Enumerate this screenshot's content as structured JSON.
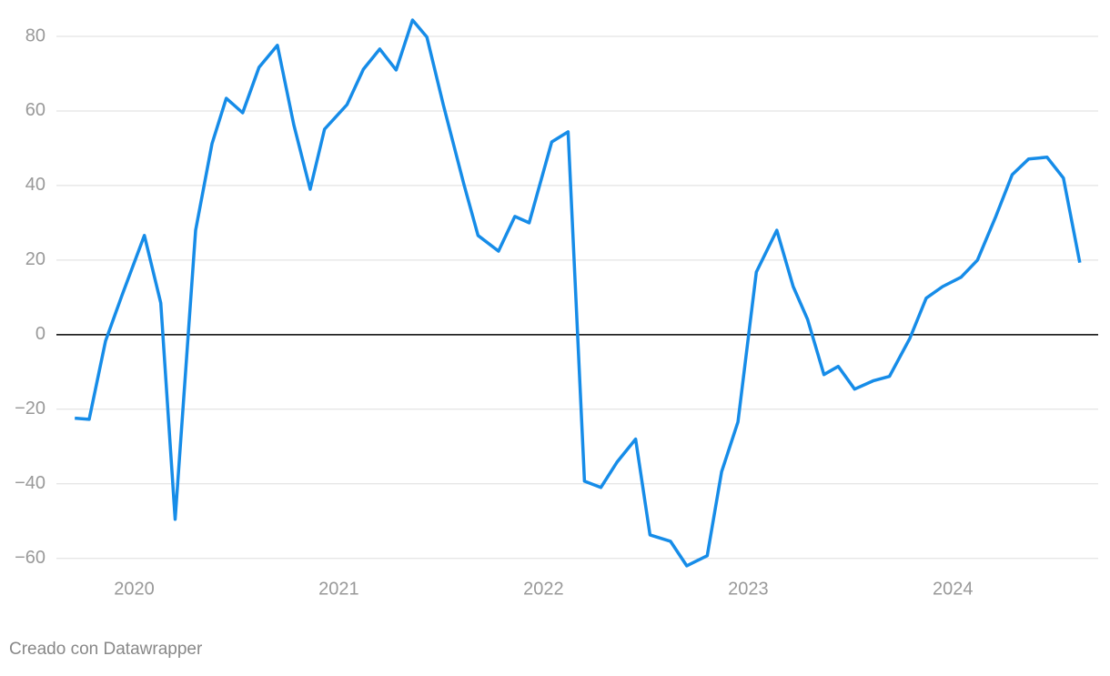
{
  "chart_data": {
    "type": "line",
    "x": [
      2019.71,
      2019.78,
      2019.86,
      2019.94,
      2020.05,
      2020.13,
      2020.2,
      2020.3,
      2020.38,
      2020.45,
      2020.53,
      2020.61,
      2020.7,
      2020.78,
      2020.86,
      2020.93,
      2021.04,
      2021.12,
      2021.2,
      2021.28,
      2021.36,
      2021.43,
      2021.51,
      2021.61,
      2021.68,
      2021.78,
      2021.86,
      2021.93,
      2022.04,
      2022.12,
      2022.2,
      2022.28,
      2022.36,
      2022.45,
      2022.52,
      2022.62,
      2022.7,
      2022.8,
      2022.87,
      2022.95,
      2023.04,
      2023.14,
      2023.22,
      2023.29,
      2023.37,
      2023.44,
      2023.52,
      2023.61,
      2023.69,
      2023.79,
      2023.87,
      2023.95,
      2024.04,
      2024.12,
      2024.21,
      2024.29,
      2024.37,
      2024.46,
      2024.54,
      2024.62
    ],
    "series": [
      {
        "color": "#168ce8",
        "values": [
          -22.4,
          -22.7,
          -1.7,
          10.5,
          26.6,
          8.5,
          -49.5,
          28,
          51.2,
          63.4,
          59.5,
          71.7,
          77.6,
          56.3,
          39,
          55.1,
          61.7,
          71.2,
          76.6,
          71,
          84.4,
          79.8,
          61.7,
          40.5,
          26.6,
          22.4,
          31.7,
          30,
          51.7,
          54.4,
          -39.3,
          -41,
          -34.1,
          -28,
          -53.7,
          -55.4,
          -62,
          -59.3,
          -36.8,
          -23.4,
          16.8,
          28,
          12.9,
          4.1,
          -10.7,
          -8.5,
          -14.6,
          -12.4,
          -11.2,
          -1,
          9.8,
          12.9,
          15.4,
          20,
          31.7,
          42.9,
          47.1,
          47.6,
          42,
          19.3
        ]
      }
    ],
    "xlim": [
      2019.62,
      2024.71
    ],
    "xticks": [
      2020,
      2021,
      2022,
      2023,
      2024
    ],
    "ylim": [
      -63,
      85
    ],
    "yticks": [
      {
        "value": -60,
        "label": "−60"
      },
      {
        "value": -40,
        "label": "−40"
      },
      {
        "value": -20,
        "label": "−20"
      },
      0,
      20,
      40,
      60,
      80
    ],
    "grid": true,
    "credit": "Creado con Datawrapper"
  }
}
